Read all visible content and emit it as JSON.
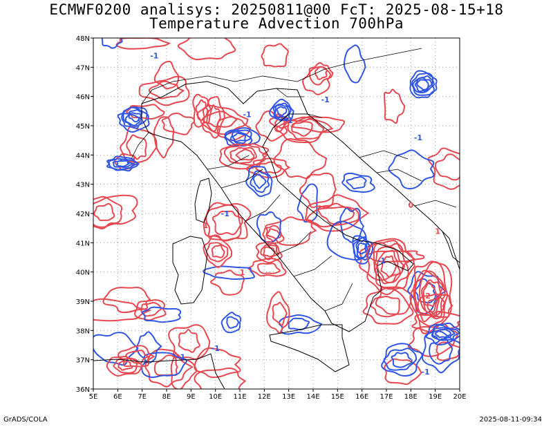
{
  "title_line1": "ECMWF0200 analisys: 20250811@00 FcT: 2025-08-15+18",
  "title_line2": "Temperature Advection 700hPa",
  "footer_left": "GrADS/COLA",
  "footer_right": "2025-08-11-09:34",
  "colors": {
    "positive_contour": "#e8474f",
    "negative_contour": "#2f55e6",
    "coastline": "#000000",
    "grid": "#9a9a9a"
  },
  "map": {
    "lon_range": [
      5,
      20
    ],
    "lat_range": [
      36,
      48
    ],
    "lon_ticks": [
      "5E",
      "6E",
      "7E",
      "8E",
      "9E",
      "10E",
      "11E",
      "12E",
      "13E",
      "14E",
      "15E",
      "16E",
      "17E",
      "18E",
      "19E",
      "20E"
    ],
    "lat_ticks": [
      "36N",
      "37N",
      "38N",
      "39N",
      "40N",
      "41N",
      "42N",
      "43N",
      "44N",
      "45N",
      "46N",
      "47N",
      "48N"
    ],
    "grid_lines": true,
    "contour_labels": [
      {
        "text": "-1",
        "lon": 7.5,
        "lat": 47.3
      },
      {
        "text": "-1",
        "lon": 11.3,
        "lat": 45.3
      },
      {
        "text": "-1",
        "lon": 13.0,
        "lat": 45.1
      },
      {
        "text": "-1",
        "lon": 14.5,
        "lat": 45.8
      },
      {
        "text": "-1",
        "lon": 18.3,
        "lat": 44.5
      },
      {
        "text": "-1",
        "lon": 10.4,
        "lat": 41.9
      },
      {
        "text": "-1",
        "lon": 16.8,
        "lat": 40.3
      },
      {
        "text": "-1",
        "lon": 10.0,
        "lat": 37.3
      },
      {
        "text": "-1",
        "lon": 18.6,
        "lat": 36.5
      },
      {
        "text": "-1",
        "lon": 8.6,
        "lat": 37.0
      },
      {
        "text": "1",
        "lon": 19.1,
        "lat": 41.3
      },
      {
        "text": "1",
        "lon": 9.6,
        "lat": 41.5
      },
      {
        "text": "0",
        "lon": 18.0,
        "lat": 42.2
      },
      {
        "text": "1",
        "lon": 16.6,
        "lat": 40.1
      },
      {
        "text": "2",
        "lon": 18.7,
        "lat": 39.1
      },
      {
        "text": "1",
        "lon": 11.1,
        "lat": 39.9
      }
    ]
  }
}
